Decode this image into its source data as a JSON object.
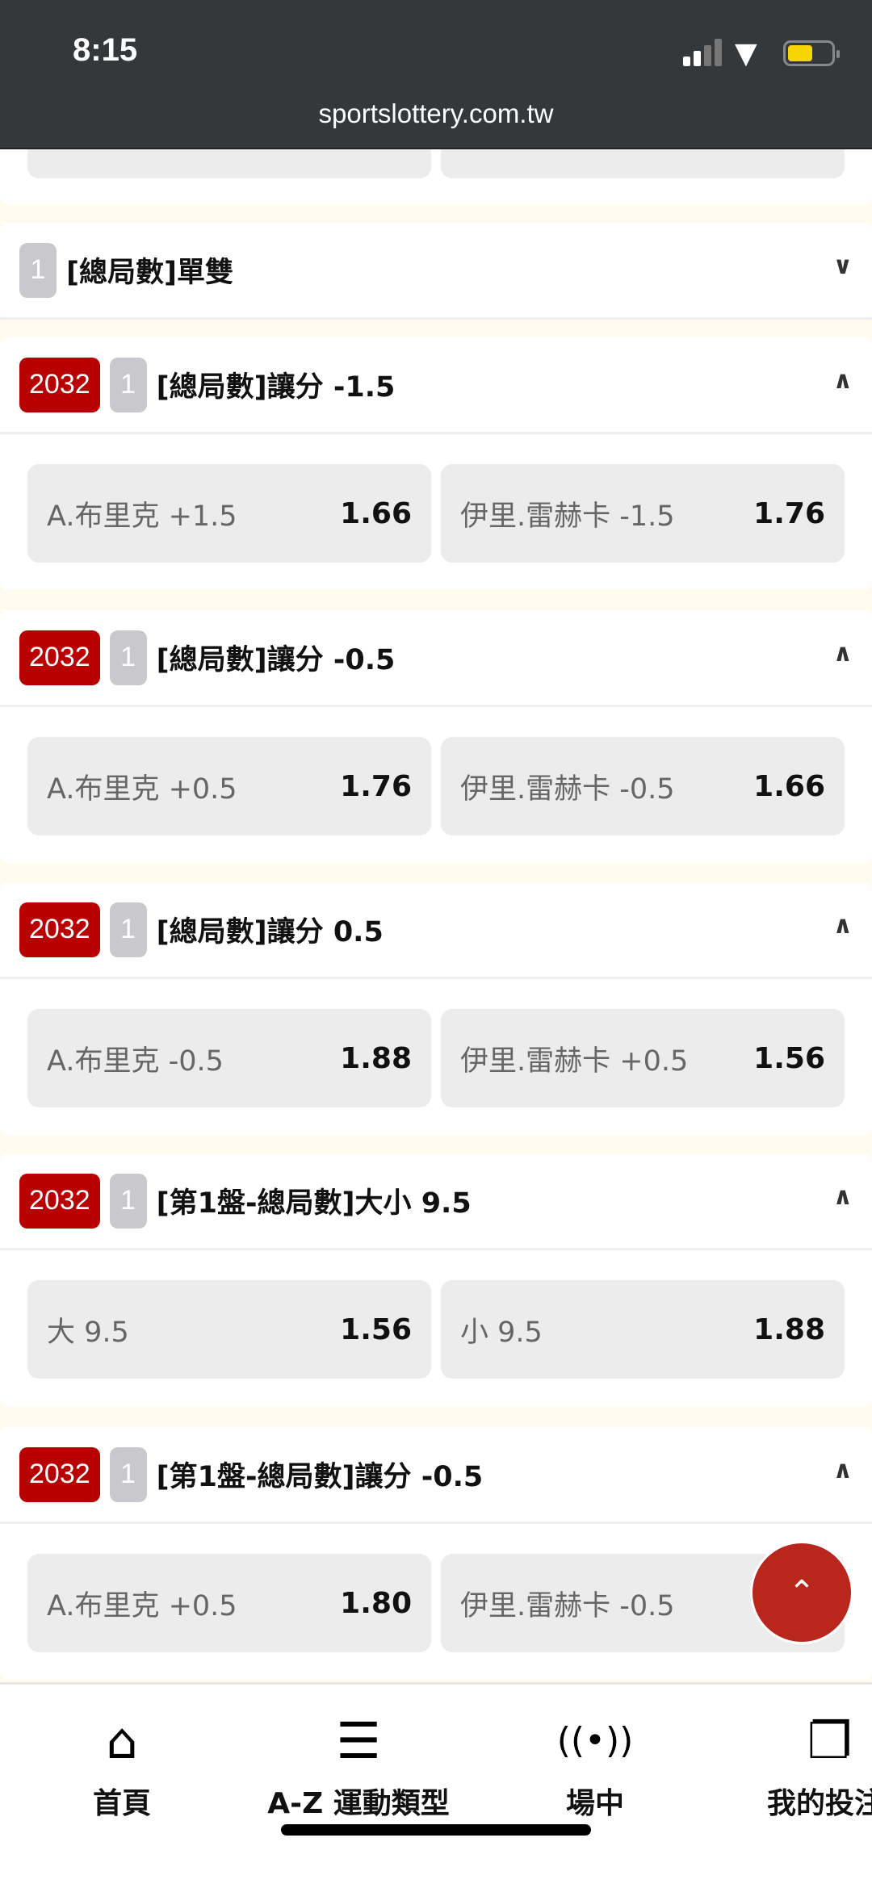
{
  "status_bar": {
    "time": "8:15",
    "url": "sportslottery.com.tw",
    "battery_color": "#f7d500"
  },
  "colors": {
    "badge_red": "#b80000",
    "scroll_top": "#b8261c"
  },
  "markets": [
    {
      "code": "",
      "order": "1",
      "title": "[總局數]單雙",
      "expanded": false,
      "options": []
    },
    {
      "code": "2032",
      "order": "1",
      "title": "[總局數]讓分 -1.5",
      "expanded": true,
      "options": [
        {
          "label": "A.布里克 +1.5",
          "odds": "1.66"
        },
        {
          "label": "伊里.雷赫卡 -1.5",
          "odds": "1.76"
        }
      ]
    },
    {
      "code": "2032",
      "order": "1",
      "title": "[總局數]讓分 -0.5",
      "expanded": true,
      "options": [
        {
          "label": "A.布里克 +0.5",
          "odds": "1.76"
        },
        {
          "label": "伊里.雷赫卡 -0.5",
          "odds": "1.66"
        }
      ]
    },
    {
      "code": "2032",
      "order": "1",
      "title": "[總局數]讓分 0.5",
      "expanded": true,
      "options": [
        {
          "label": "A.布里克 -0.5",
          "odds": "1.88"
        },
        {
          "label": "伊里.雷赫卡 +0.5",
          "odds": "1.56"
        }
      ]
    },
    {
      "code": "2032",
      "order": "1",
      "title": "[第1盤-總局數]大小 9.5",
      "expanded": true,
      "options": [
        {
          "label": "大 9.5",
          "odds": "1.56"
        },
        {
          "label": "小 9.5",
          "odds": "1.88"
        }
      ]
    },
    {
      "code": "2032",
      "order": "1",
      "title": "[第1盤-總局數]讓分 -0.5",
      "expanded": true,
      "options": [
        {
          "label": "A.布里克 +0.5",
          "odds": "1.80"
        },
        {
          "label": "伊里.雷赫卡 -0.5",
          "odds": ""
        }
      ]
    }
  ],
  "bottom_nav": [
    {
      "label": "首頁",
      "icon": "home-icon"
    },
    {
      "label": "A-Z 運動類型",
      "icon": "menu-icon"
    },
    {
      "label": "場中",
      "icon": "live-broadcast-icon"
    },
    {
      "label": "我的投注",
      "icon": "documents-icon"
    }
  ]
}
